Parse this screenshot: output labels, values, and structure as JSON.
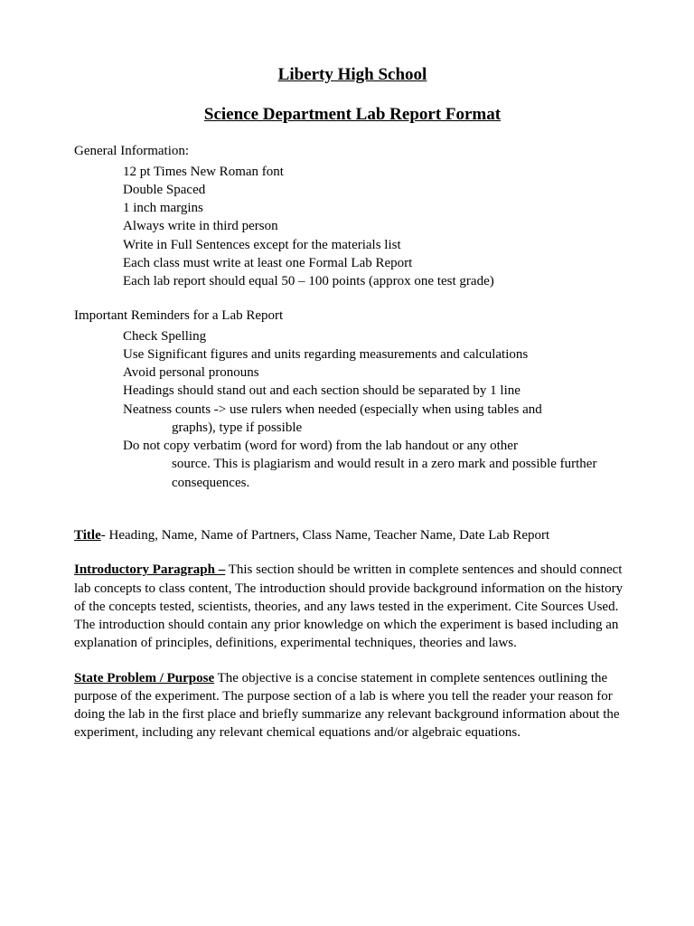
{
  "header": {
    "school": "Liberty High School",
    "title": "Science Department Lab Report Format"
  },
  "general": {
    "label": "General Information:",
    "items": [
      "12 pt Times New Roman font",
      "Double Spaced",
      "1 inch margins",
      "Always write in third person",
      "Write in Full Sentences except for the materials list",
      "Each class must write at least one Formal Lab Report",
      "Each lab report should equal 50 – 100 points (approx one test grade)"
    ]
  },
  "reminders": {
    "label": "Important Reminders for a Lab Report",
    "items": [
      {
        "text": "Check Spelling"
      },
      {
        "text": "Use Significant figures and units regarding measurements and calculations"
      },
      {
        "text": " Avoid personal pronouns"
      },
      {
        "text": "Headings should stand out and each section should be separated by 1 line"
      },
      {
        "text": "Neatness counts -> use rulers when needed (especially when using tables and",
        "cont": "graphs), type if possible"
      },
      {
        "text": "Do not copy verbatim (word for word) from the lab handout or any other",
        "cont": "source. This is plagiarism and would result in a zero mark and possible further consequences."
      }
    ]
  },
  "sections": {
    "title": {
      "term": "Title",
      "sep": "- ",
      "body": "Heading, Name, Name of Partners, Class Name, Teacher Name, Date Lab Report"
    },
    "intro": {
      "term": "Introductory Paragraph –",
      "sep": "  ",
      "body": "This section should be written in complete sentences and should connect lab concepts to class content,  The introduction should provide background information on the history of the concepts tested, scientists, theories, and any laws tested in the experiment. Cite Sources Used. The introduction should contain any prior knowledge on which the experiment is based including an explanation of principles, definitions, experimental techniques, theories and laws."
    },
    "purpose": {
      "term": "State Problem / Purpose",
      "sep": " ",
      "body": "The objective is a concise statement  in complete sentences outlining the purpose of the experiment. The purpose section of a lab is where you tell the reader your reason for doing the lab in the first place and briefly summarize any relevant background information about the experiment, including any relevant chemical equations and/or algebraic equations."
    }
  }
}
